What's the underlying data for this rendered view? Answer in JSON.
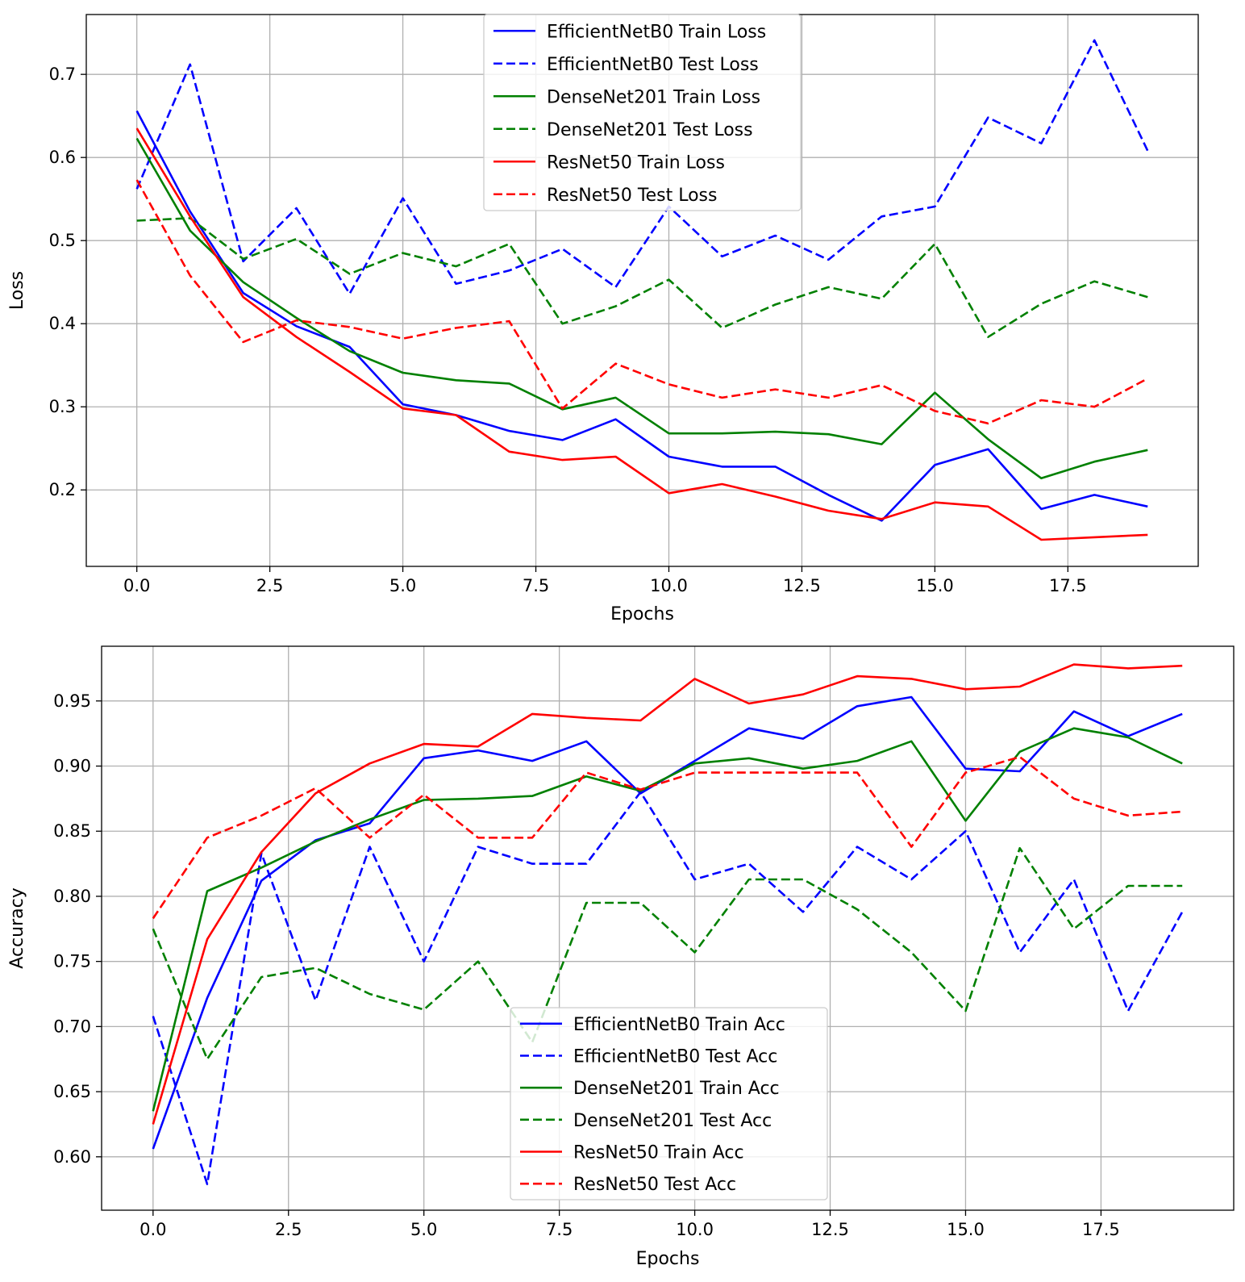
{
  "chart_data": [
    {
      "type": "line",
      "xlabel": "Epochs",
      "ylabel": "Loss",
      "xlim": [
        -0.95,
        19.95
      ],
      "ylim": [
        0.108,
        0.772
      ],
      "xticks": [
        0.0,
        2.5,
        5.0,
        7.5,
        10.0,
        12.5,
        15.0,
        17.5
      ],
      "xtick_labels": [
        "0.0",
        "2.5",
        "5.0",
        "7.5",
        "10.0",
        "12.5",
        "15.0",
        "17.5"
      ],
      "yticks": [
        0.2,
        0.3,
        0.4,
        0.5,
        0.6,
        0.7
      ],
      "ytick_labels": [
        "0.2",
        "0.3",
        "0.4",
        "0.5",
        "0.6",
        "0.7"
      ],
      "grid": true,
      "legend_position": "upper-center",
      "x": [
        0,
        1,
        2,
        3,
        4,
        5,
        6,
        7,
        8,
        9,
        10,
        11,
        12,
        13,
        14,
        15,
        16,
        17,
        18,
        19
      ],
      "series": [
        {
          "name": "EfficientNetB0 Train Loss",
          "color": "#0000ff",
          "dashed": false,
          "values": [
            0.656,
            0.535,
            0.437,
            0.397,
            0.372,
            0.303,
            0.29,
            0.271,
            0.26,
            0.285,
            0.24,
            0.228,
            0.228,
            0.194,
            0.163,
            0.23,
            0.249,
            0.177,
            0.194,
            0.18
          ]
        },
        {
          "name": "EfficientNetB0 Test Loss",
          "color": "#0000ff",
          "dashed": true,
          "values": [
            0.562,
            0.712,
            0.475,
            0.539,
            0.436,
            0.551,
            0.448,
            0.464,
            0.49,
            0.444,
            0.541,
            0.481,
            0.506,
            0.477,
            0.529,
            0.541,
            0.648,
            0.617,
            0.741,
            0.608
          ]
        },
        {
          "name": "DenseNet201 Train Loss",
          "color": "#008000",
          "dashed": false,
          "values": [
            0.623,
            0.512,
            0.45,
            0.407,
            0.367,
            0.341,
            0.332,
            0.328,
            0.297,
            0.311,
            0.268,
            0.268,
            0.27,
            0.267,
            0.255,
            0.317,
            0.261,
            0.214,
            0.234,
            0.248
          ]
        },
        {
          "name": "DenseNet201 Test Loss",
          "color": "#008000",
          "dashed": true,
          "values": [
            0.524,
            0.527,
            0.478,
            0.502,
            0.46,
            0.485,
            0.469,
            0.496,
            0.4,
            0.421,
            0.453,
            0.395,
            0.423,
            0.444,
            0.43,
            0.496,
            0.384,
            0.424,
            0.451,
            0.432
          ]
        },
        {
          "name": "ResNet50 Train Loss",
          "color": "#ff0000",
          "dashed": false,
          "values": [
            0.635,
            0.529,
            0.432,
            0.384,
            0.342,
            0.298,
            0.29,
            0.246,
            0.236,
            0.24,
            0.196,
            0.207,
            0.192,
            0.175,
            0.165,
            0.185,
            0.18,
            0.14,
            0.143,
            0.146
          ]
        },
        {
          "name": "ResNet50 Test Loss",
          "color": "#ff0000",
          "dashed": true,
          "values": [
            0.573,
            0.458,
            0.378,
            0.404,
            0.396,
            0.382,
            0.395,
            0.403,
            0.298,
            0.352,
            0.327,
            0.311,
            0.321,
            0.311,
            0.326,
            0.295,
            0.28,
            0.308,
            0.3,
            0.334
          ]
        }
      ]
    },
    {
      "type": "line",
      "xlabel": "Epochs",
      "ylabel": "Accuracy",
      "xlim": [
        -0.95,
        19.95
      ],
      "ylim": [
        0.559,
        0.992
      ],
      "xticks": [
        0.0,
        2.5,
        5.0,
        7.5,
        10.0,
        12.5,
        15.0,
        17.5
      ],
      "xtick_labels": [
        "0.0",
        "2.5",
        "5.0",
        "7.5",
        "10.0",
        "12.5",
        "15.0",
        "17.5"
      ],
      "yticks": [
        0.6,
        0.65,
        0.7,
        0.75,
        0.8,
        0.85,
        0.9,
        0.95
      ],
      "ytick_labels": [
        "0.60",
        "0.65",
        "0.70",
        "0.75",
        "0.80",
        "0.85",
        "0.90",
        "0.95"
      ],
      "grid": true,
      "legend_position": "lower-center",
      "x": [
        0,
        1,
        2,
        3,
        4,
        5,
        6,
        7,
        8,
        9,
        10,
        11,
        12,
        13,
        14,
        15,
        16,
        17,
        18,
        19
      ],
      "series": [
        {
          "name": "EfficientNetB0 Train Acc",
          "color": "#0000ff",
          "dashed": false,
          "values": [
            0.606,
            0.722,
            0.812,
            0.843,
            0.856,
            0.906,
            0.912,
            0.904,
            0.919,
            0.879,
            0.904,
            0.929,
            0.921,
            0.946,
            0.953,
            0.898,
            0.896,
            0.942,
            0.923,
            0.94
          ]
        },
        {
          "name": "EfficientNetB0 Test Acc",
          "color": "#0000ff",
          "dashed": true,
          "values": [
            0.708,
            0.579,
            0.833,
            0.72,
            0.838,
            0.75,
            0.838,
            0.825,
            0.825,
            0.88,
            0.813,
            0.825,
            0.788,
            0.838,
            0.813,
            0.85,
            0.757,
            0.813,
            0.712,
            0.788
          ]
        },
        {
          "name": "DenseNet201 Train Acc",
          "color": "#008000",
          "dashed": false,
          "values": [
            0.635,
            0.804,
            0.822,
            0.842,
            0.859,
            0.874,
            0.875,
            0.877,
            0.892,
            0.881,
            0.902,
            0.906,
            0.898,
            0.904,
            0.919,
            0.858,
            0.911,
            0.929,
            0.922,
            0.902
          ]
        },
        {
          "name": "DenseNet201 Test Acc",
          "color": "#008000",
          "dashed": true,
          "values": [
            0.775,
            0.675,
            0.738,
            0.745,
            0.725,
            0.713,
            0.75,
            0.688,
            0.795,
            0.795,
            0.757,
            0.813,
            0.813,
            0.79,
            0.757,
            0.712,
            0.837,
            0.775,
            0.808,
            0.808
          ]
        },
        {
          "name": "ResNet50 Train Acc",
          "color": "#ff0000",
          "dashed": false,
          "values": [
            0.625,
            0.767,
            0.834,
            0.879,
            0.902,
            0.917,
            0.915,
            0.94,
            0.937,
            0.935,
            0.967,
            0.948,
            0.955,
            0.969,
            0.967,
            0.959,
            0.961,
            0.978,
            0.975,
            0.977
          ]
        },
        {
          "name": "ResNet50 Test Acc",
          "color": "#ff0000",
          "dashed": true,
          "values": [
            0.783,
            0.845,
            0.862,
            0.883,
            0.845,
            0.878,
            0.845,
            0.845,
            0.895,
            0.882,
            0.895,
            0.895,
            0.895,
            0.895,
            0.838,
            0.895,
            0.907,
            0.875,
            0.862,
            0.865
          ]
        }
      ]
    }
  ]
}
